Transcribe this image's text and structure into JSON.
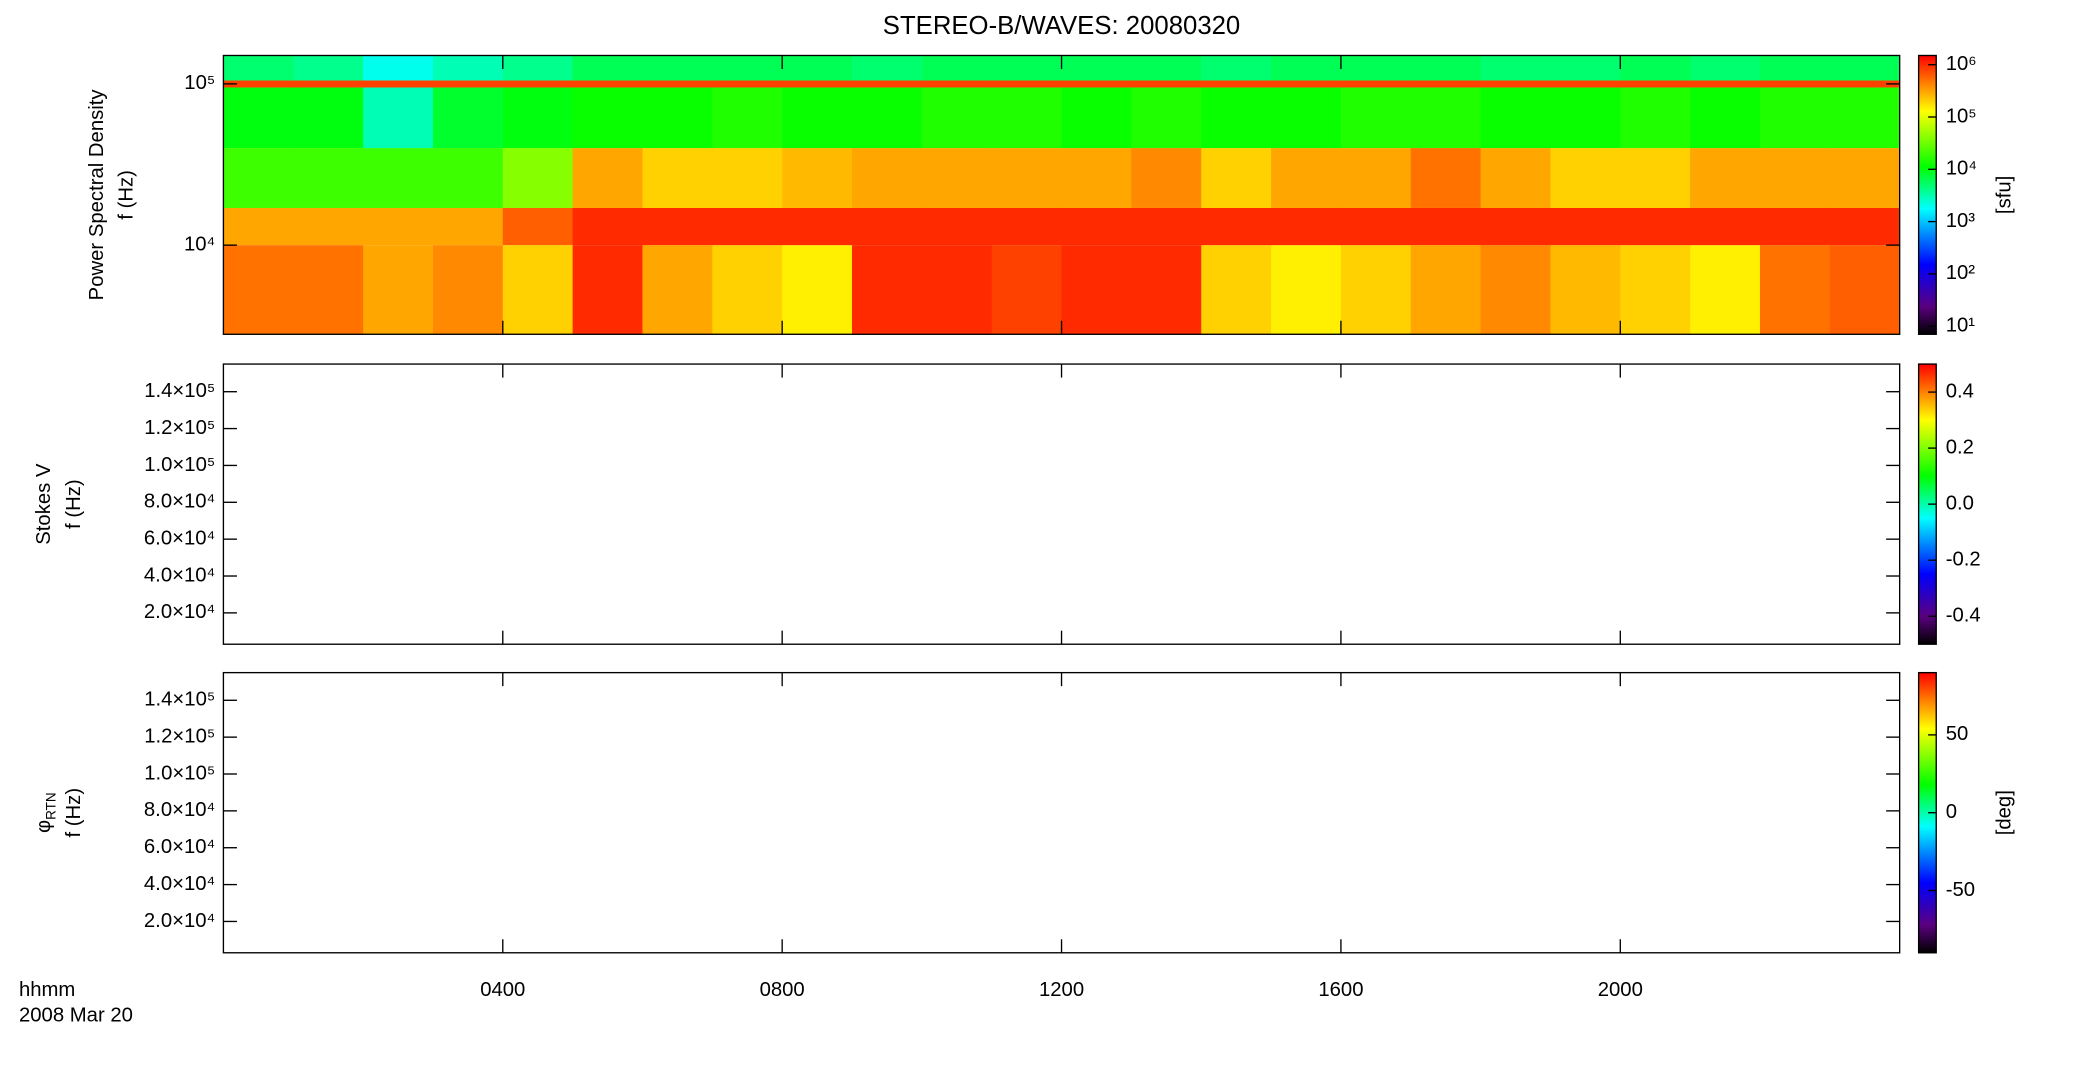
{
  "chart_data": [
    {
      "type": "heatmap",
      "title": "STEREO-B/WAVES: 20080320",
      "ylabel_lines": [
        "Power Spectral Density",
        "f (Hz)"
      ],
      "ylog": true,
      "ylim": [
        2800,
        150000
      ],
      "yticks": [
        {
          "value": 10000,
          "label": "10⁴"
        },
        {
          "value": 100000,
          "label": "10⁵"
        }
      ],
      "xlim": [
        0,
        24
      ],
      "xbins": [
        0,
        1,
        2,
        3,
        4,
        5,
        6,
        7,
        8,
        9,
        10,
        11,
        12,
        13,
        14,
        15,
        16,
        17,
        18,
        19,
        20,
        21,
        22,
        23,
        24
      ],
      "ybins": [
        2800,
        10000,
        17000,
        40000,
        95000,
        105000,
        150000
      ],
      "z": [
        [
          500000,
          500000,
          300000,
          400000,
          200000,
          1000000,
          300000,
          200000,
          150000,
          1000000,
          1000000,
          800000,
          1000000,
          1000000,
          200000,
          150000,
          200000,
          300000,
          400000,
          250000,
          200000,
          150000,
          500000,
          600000
        ],
        [
          300000,
          300000,
          300000,
          300000,
          600000,
          1000000,
          1000000,
          1000000,
          1000000,
          1000000,
          1000000,
          1000000,
          1000000,
          1000000,
          1000000,
          1000000,
          1000000,
          1000000,
          1000000,
          1000000,
          1000000,
          1000000,
          1000000,
          1000000
        ],
        [
          20000,
          20000,
          20000,
          20000,
          40000,
          300000,
          200000,
          200000,
          250000,
          300000,
          300000,
          300000,
          300000,
          400000,
          200000,
          300000,
          300000,
          500000,
          300000,
          200000,
          200000,
          300000,
          300000,
          300000
        ],
        [
          10000,
          10000,
          3000,
          8000,
          10000,
          12000,
          12000,
          15000,
          12000,
          12000,
          15000,
          15000,
          12000,
          15000,
          12000,
          12000,
          15000,
          15000,
          12000,
          12000,
          15000,
          12000,
          15000,
          15000
        ],
        [
          800000,
          800000,
          800000,
          800000,
          800000,
          800000,
          800000,
          800000,
          800000,
          800000,
          800000,
          800000,
          800000,
          800000,
          800000,
          800000,
          800000,
          800000,
          800000,
          800000,
          800000,
          800000,
          800000,
          800000
        ],
        [
          5000,
          4000,
          2000,
          3000,
          4000,
          6000,
          6000,
          6000,
          6000,
          5000,
          6000,
          6000,
          6000,
          6000,
          5000,
          6000,
          6000,
          6000,
          5000,
          5000,
          6000,
          5000,
          6000,
          6000
        ]
      ],
      "colormap": "rainbow",
      "clog": true,
      "clim": [
        7,
        1500000
      ],
      "cticks": [
        {
          "value": 10,
          "label": "10¹"
        },
        {
          "value": 100,
          "label": "10²"
        },
        {
          "value": 1000,
          "label": "10³"
        },
        {
          "value": 10000,
          "label": "10⁴"
        },
        {
          "value": 100000,
          "label": "10⁵"
        },
        {
          "value": 1000000,
          "label": "10⁶"
        }
      ],
      "clabel": "[sfu]"
    },
    {
      "type": "heatmap",
      "ylabel_lines": [
        "Stokes V",
        "f (Hz)"
      ],
      "ylog": false,
      "ylim": [
        3000,
        155000
      ],
      "yticks": [
        {
          "value": 20000,
          "label": "2.0×10⁴"
        },
        {
          "value": 40000,
          "label": "4.0×10⁴"
        },
        {
          "value": 60000,
          "label": "6.0×10⁴"
        },
        {
          "value": 80000,
          "label": "8.0×10⁴"
        },
        {
          "value": 100000,
          "label": "1.0×10⁵"
        },
        {
          "value": 120000,
          "label": "1.2×10⁵"
        },
        {
          "value": 140000,
          "label": "1.4×10⁵"
        }
      ],
      "xlim": [
        0,
        24
      ],
      "colormap": "rainbow",
      "clog": false,
      "clim": [
        -0.5,
        0.5
      ],
      "cticks": [
        -0.4,
        -0.2,
        {
          "value": 0,
          "label": "0.0"
        },
        0.2,
        0.4
      ]
    },
    {
      "type": "heatmap",
      "ylabel_lines": [
        "φ",
        "f (Hz)"
      ],
      "ylabel_sub": "RTN",
      "ylog": false,
      "ylim": [
        3000,
        155000
      ],
      "yticks": [
        {
          "value": 20000,
          "label": "2.0×10⁴"
        },
        {
          "value": 40000,
          "label": "4.0×10⁴"
        },
        {
          "value": 60000,
          "label": "6.0×10⁴"
        },
        {
          "value": 80000,
          "label": "8.0×10⁴"
        },
        {
          "value": 100000,
          "label": "1.0×10⁵"
        },
        {
          "value": 120000,
          "label": "1.2×10⁵"
        },
        {
          "value": 140000,
          "label": "1.4×10⁵"
        }
      ],
      "xlim": [
        0,
        24
      ],
      "xticks": [
        {
          "value": 4,
          "label": "0400"
        },
        {
          "value": 8,
          "label": "0800"
        },
        {
          "value": 12,
          "label": "1200"
        },
        {
          "value": 16,
          "label": "1600"
        },
        {
          "value": 20,
          "label": "2000"
        }
      ],
      "xlabel_lines": [
        "hhmm",
        "2008 Mar 20"
      ],
      "colormap": "rainbow",
      "clog": false,
      "clim": [
        -90,
        90
      ],
      "cticks": [
        -50,
        0,
        50
      ],
      "clabel": "[deg]"
    }
  ]
}
